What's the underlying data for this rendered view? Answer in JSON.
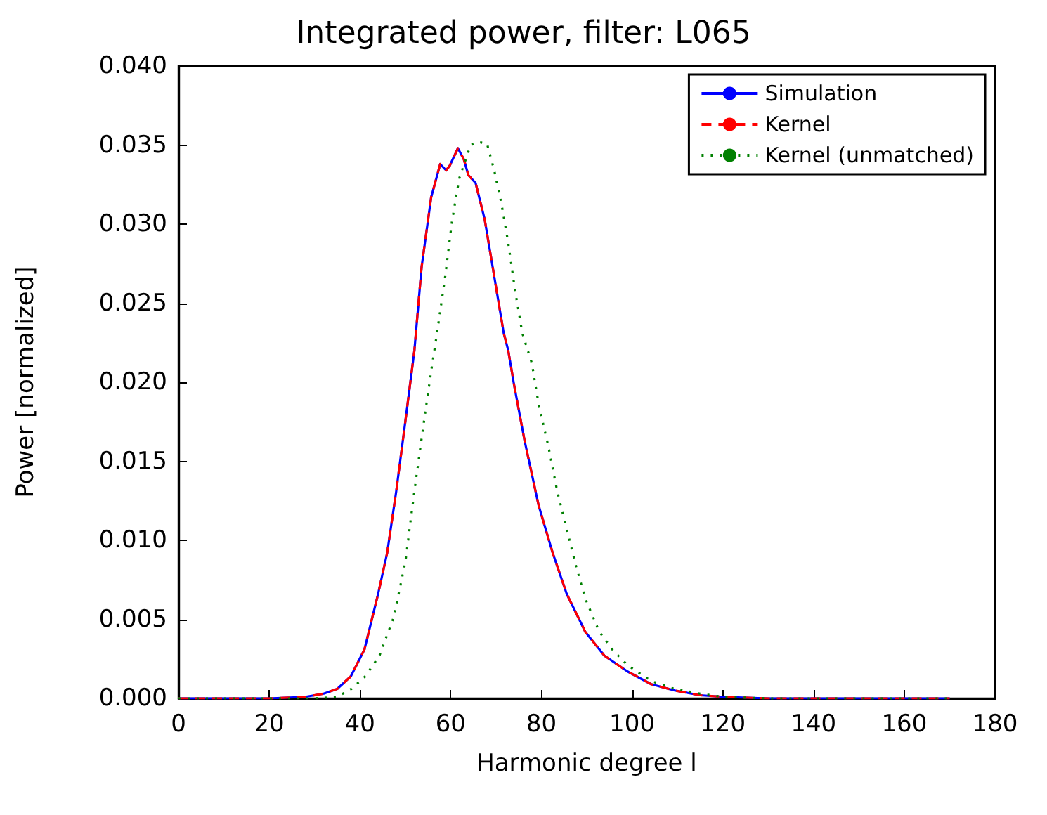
{
  "chart_data": {
    "type": "line",
    "title": "Integrated power, filter: L065",
    "xlabel": "Harmonic degree l",
    "ylabel": "Power [normalized]",
    "xlim": [
      0,
      180
    ],
    "xticks": [
      0,
      20,
      40,
      60,
      80,
      100,
      120,
      140,
      160,
      180
    ],
    "ylim": [
      0,
      0.04
    ],
    "yticks": [
      {
        "value": 0,
        "label": "0.000"
      },
      {
        "value": 0.005,
        "label": "0.005"
      },
      {
        "value": 0.01,
        "label": "0.010"
      },
      {
        "value": 0.015,
        "label": "0.015"
      },
      {
        "value": 0.02,
        "label": "0.020"
      },
      {
        "value": 0.025,
        "label": "0.025"
      },
      {
        "value": 0.03,
        "label": "0.030"
      },
      {
        "value": 0.035,
        "label": "0.035"
      },
      {
        "value": 0.04,
        "label": "0.040"
      }
    ],
    "grid": false,
    "legend": "top right",
    "marker": "none",
    "series": [
      {
        "name": "Simulation",
        "color": "#0000ff",
        "line_style": "solid",
        "x": [
          0,
          10,
          20,
          28,
          32,
          35,
          38,
          41,
          44,
          46,
          48,
          50,
          52,
          53.6,
          55.7,
          57.7,
          59,
          59.8,
          61.6,
          62.9,
          63.9,
          65.5,
          67.5,
          69.6,
          71.7,
          72.7,
          74,
          76.3,
          79.4,
          82.5,
          85.6,
          89.7,
          93.9,
          99,
          104.2,
          109.4,
          115,
          120,
          130,
          150,
          170
        ],
        "values": [
          0,
          0,
          0,
          0.0001,
          0.0003,
          0.0006,
          0.0014,
          0.0031,
          0.0066,
          0.0092,
          0.0131,
          0.0175,
          0.022,
          0.0273,
          0.0317,
          0.0338,
          0.0334,
          0.0337,
          0.0348,
          0.0341,
          0.0331,
          0.0326,
          0.0303,
          0.0267,
          0.0231,
          0.022,
          0.0198,
          0.0163,
          0.0122,
          0.0092,
          0.0066,
          0.0042,
          0.0027,
          0.0017,
          0.0009,
          0.0005,
          0.0002,
          0.0001,
          0,
          0,
          0
        ]
      },
      {
        "name": "Kernel",
        "color": "#ff0000",
        "line_style": "dashed",
        "x": [
          0,
          10,
          20,
          28,
          32,
          35,
          38,
          41,
          44,
          46,
          48,
          50,
          52,
          53.6,
          55.7,
          57.7,
          59,
          59.8,
          61.6,
          62.9,
          63.9,
          65.5,
          67.5,
          69.6,
          71.7,
          72.7,
          74,
          76.3,
          79.4,
          82.5,
          85.6,
          89.7,
          93.9,
          99,
          104.2,
          109.4,
          115,
          120,
          130,
          150,
          170
        ],
        "values": [
          0,
          0,
          0,
          0.0001,
          0.0003,
          0.0006,
          0.0014,
          0.0031,
          0.0066,
          0.0092,
          0.0131,
          0.0175,
          0.022,
          0.0273,
          0.0317,
          0.0338,
          0.0334,
          0.0337,
          0.0348,
          0.0341,
          0.0331,
          0.0326,
          0.0303,
          0.0267,
          0.0231,
          0.022,
          0.0198,
          0.0163,
          0.0122,
          0.0092,
          0.0066,
          0.0042,
          0.0027,
          0.0017,
          0.0009,
          0.0005,
          0.0002,
          0.0001,
          0,
          0,
          0
        ]
      },
      {
        "name": "Kernel (unmatched)",
        "color": "#008000",
        "line_style": "dotted",
        "x": [
          0,
          10,
          20,
          30,
          35,
          38.1,
          41.2,
          44.3,
          47.4,
          50,
          52,
          54.1,
          55.6,
          57.2,
          58.8,
          60.3,
          61.9,
          64.4,
          66,
          68,
          69.6,
          71.2,
          72.7,
          74.2,
          75.8,
          77.9,
          79.4,
          81.5,
          83.5,
          85.6,
          87.7,
          89.7,
          92.8,
          95.9,
          99,
          104.2,
          109.4,
          115,
          120,
          130,
          150,
          170
        ],
        "values": [
          0,
          0,
          0,
          0,
          0.0001,
          0.0006,
          0.0014,
          0.0027,
          0.0051,
          0.0086,
          0.0131,
          0.0175,
          0.0205,
          0.0235,
          0.0267,
          0.0302,
          0.0329,
          0.035,
          0.0352,
          0.0351,
          0.0334,
          0.0313,
          0.0288,
          0.0258,
          0.0231,
          0.0212,
          0.0186,
          0.016,
          0.0131,
          0.0107,
          0.0083,
          0.0063,
          0.0042,
          0.003,
          0.0021,
          0.0011,
          0.0006,
          0.0003,
          0.0001,
          0,
          0,
          0
        ]
      }
    ]
  }
}
